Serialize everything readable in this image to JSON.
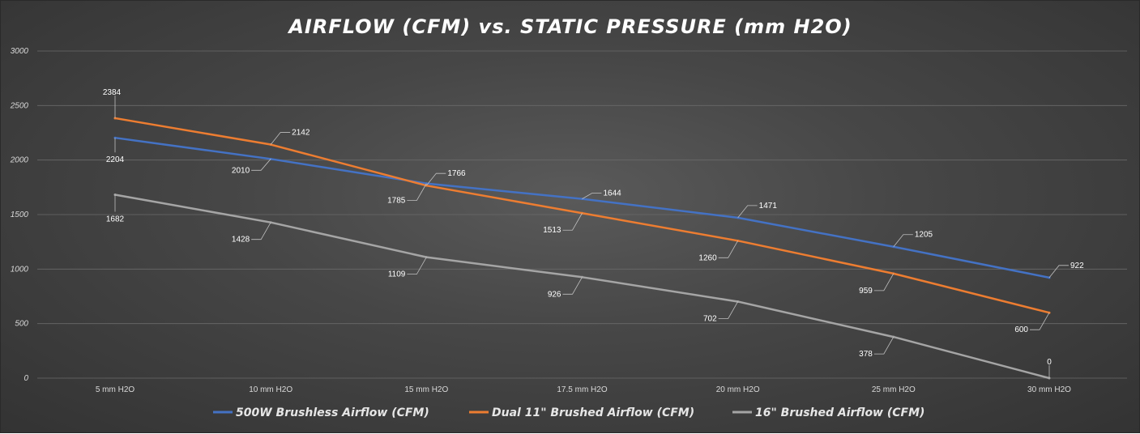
{
  "chart_data": {
    "type": "line",
    "title": "AIRFLOW (CFM) vs. STATIC PRESSURE (mm H2O)",
    "xlabel": "",
    "ylabel": "",
    "categories": [
      "5 mm H2O",
      "10 mm H2O",
      "15 mm H2O",
      "17.5 mm H2O",
      "20 mm H2O",
      "25 mm H2O",
      "30 mm H2O"
    ],
    "ylim": [
      0,
      3000
    ],
    "yticks": [
      "0",
      "500",
      "1000",
      "1500",
      "2000",
      "2500",
      "3000"
    ],
    "grid": true,
    "legend_position": "bottom",
    "series": [
      {
        "name": "500W Brushless Airflow (CFM)",
        "color": "#4472c4",
        "values": [
          2204,
          2010,
          1785,
          1644,
          1471,
          1205,
          922
        ]
      },
      {
        "name": "Dual 11\" Brushed Airflow (CFM)",
        "color": "#ed7d31",
        "values": [
          2384,
          2142,
          1766,
          1513,
          1260,
          959,
          600
        ]
      },
      {
        "name": "16\" Brushed Airflow (CFM)",
        "color": "#a5a5a5",
        "values": [
          1682,
          1428,
          1109,
          926,
          702,
          378,
          0
        ]
      }
    ]
  }
}
